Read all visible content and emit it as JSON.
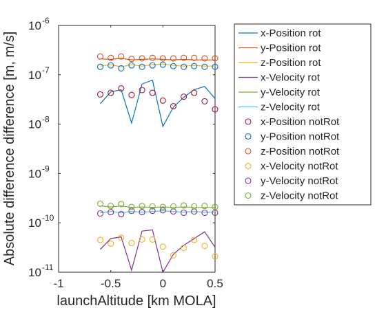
{
  "chart_data": {
    "type": "scatter",
    "xlabel": "launchAltitude [km MOLA]",
    "ylabel": "Absolute difference difference [m, m/s]",
    "xlim": [
      -1,
      0.5
    ],
    "ylim": [
      1e-11,
      1e-06
    ],
    "yscale": "log",
    "grid": false,
    "legend_position": "outside-right",
    "x_ticks": [
      {
        "value": -1,
        "label": "-1"
      },
      {
        "value": -0.5,
        "label": "-0.5"
      },
      {
        "value": 0,
        "label": "0"
      },
      {
        "value": 0.5,
        "label": "0.5"
      }
    ],
    "y_ticks": [
      {
        "value": 1e-11,
        "base": "10",
        "exp": "-11"
      },
      {
        "value": 1e-10,
        "base": "10",
        "exp": "-10"
      },
      {
        "value": 1e-09,
        "base": "10",
        "exp": "-9"
      },
      {
        "value": 1e-08,
        "base": "10",
        "exp": "-8"
      },
      {
        "value": 1e-07,
        "base": "10",
        "exp": "-7"
      },
      {
        "value": 1e-06,
        "base": "10",
        "exp": "-6"
      }
    ],
    "x": [
      -0.6,
      -0.5,
      -0.4,
      -0.3,
      -0.2,
      -0.1,
      0,
      0.1,
      0.2,
      0.3,
      0.4,
      0.5
    ],
    "series": [
      {
        "name": "x-Position rot",
        "style": "line",
        "color": "#0072BD",
        "values": [
          2.6e-08,
          4.5e-08,
          5e-08,
          1.05e-08,
          6.5e-08,
          7.8e-08,
          9e-09,
          2.2e-08,
          3.5e-08,
          5e-08,
          5.8e-08,
          3.3e-08
        ]
      },
      {
        "name": "y-Position rot",
        "style": "line",
        "color": "#D95319",
        "values": [
          2.1e-07,
          2.05e-07,
          2.15e-07,
          2e-07,
          2.05e-07,
          2.1e-07,
          2.05e-07,
          2e-07,
          2.05e-07,
          2e-07,
          2e-07,
          2e-07
        ]
      },
      {
        "name": "z-Position rot",
        "style": "line",
        "color": "#EDB120",
        "values": [
          1.5e-07,
          1.6e-07,
          1.45e-07,
          1.6e-07,
          1.5e-07,
          1.6e-07,
          1.65e-07,
          1.55e-07,
          1.5e-07,
          1.55e-07,
          1.5e-07,
          1.5e-07
        ]
      },
      {
        "name": "x-Velocity rot",
        "style": "line",
        "color": "#7E2F8E",
        "values": [
          2.9e-11,
          4.8e-11,
          5.2e-11,
          1.1e-11,
          6.8e-11,
          7.2e-11,
          1e-11,
          2.3e-11,
          3.5e-11,
          4.8e-11,
          6.6e-11,
          3.2e-11
        ]
      },
      {
        "name": "y-Velocity rot",
        "style": "line",
        "color": "#77AC30",
        "values": [
          2.2e-10,
          2.1e-10,
          2.2e-10,
          2.05e-10,
          2.1e-10,
          2.05e-10,
          2.1e-10,
          2.05e-10,
          2.1e-10,
          2.05e-10,
          2.05e-10,
          2.05e-10
        ]
      },
      {
        "name": "z-Velocity rot",
        "style": "line",
        "color": "#4DBEEE",
        "values": [
          1.6e-10,
          1.7e-10,
          1.6e-10,
          1.7e-10,
          1.65e-10,
          1.7e-10,
          1.75e-10,
          1.7e-10,
          1.65e-10,
          1.7e-10,
          1.65e-10,
          1.65e-10
        ]
      },
      {
        "name": "x-Position notRot",
        "style": "marker",
        "color": "#A2142F",
        "values": [
          4e-08,
          4.3e-08,
          5.3e-08,
          3.9e-08,
          4.9e-08,
          4.3e-08,
          3e-08,
          2.3e-08,
          3.6e-08,
          4.3e-08,
          2.9e-08,
          2e-08
        ]
      },
      {
        "name": "y-Position notRot",
        "style": "marker",
        "color": "#0072BD",
        "values": [
          1.45e-07,
          1.55e-07,
          1.35e-07,
          1.55e-07,
          1.45e-07,
          1.55e-07,
          1.6e-07,
          1.5e-07,
          1.45e-07,
          1.5e-07,
          1.45e-07,
          1.45e-07
        ]
      },
      {
        "name": "z-Position notRot",
        "style": "marker",
        "color": "#D95319",
        "values": [
          2.35e-07,
          2.2e-07,
          2.35e-07,
          2.1e-07,
          2.15e-07,
          2.2e-07,
          2.15e-07,
          2.15e-07,
          2.2e-07,
          2.2e-07,
          2.15e-07,
          2.15e-07
        ]
      },
      {
        "name": "x-Velocity notRot",
        "style": "marker",
        "color": "#EDB120",
        "values": [
          4.5e-11,
          3.8e-11,
          5e-11,
          3.9e-11,
          4.6e-11,
          4.6e-11,
          3.3e-11,
          2.2e-11,
          3.1e-11,
          4.5e-11,
          3.4e-11,
          2.1e-11
        ]
      },
      {
        "name": "y-Velocity notRot",
        "style": "marker",
        "color": "#7E2F8E",
        "values": [
          1.55e-10,
          1.65e-10,
          1.5e-10,
          1.75e-10,
          1.65e-10,
          1.75e-10,
          1.8e-10,
          1.7e-10,
          1.6e-10,
          1.7e-10,
          1.6e-10,
          1.6e-10
        ]
      },
      {
        "name": "z-Velocity notRot",
        "style": "marker",
        "color": "#77AC30",
        "values": [
          2.45e-10,
          2.2e-10,
          2.4e-10,
          2.1e-10,
          2.2e-10,
          2.15e-10,
          2.1e-10,
          2.15e-10,
          2.25e-10,
          2.15e-10,
          2.2e-10,
          2.1e-10
        ]
      }
    ]
  }
}
